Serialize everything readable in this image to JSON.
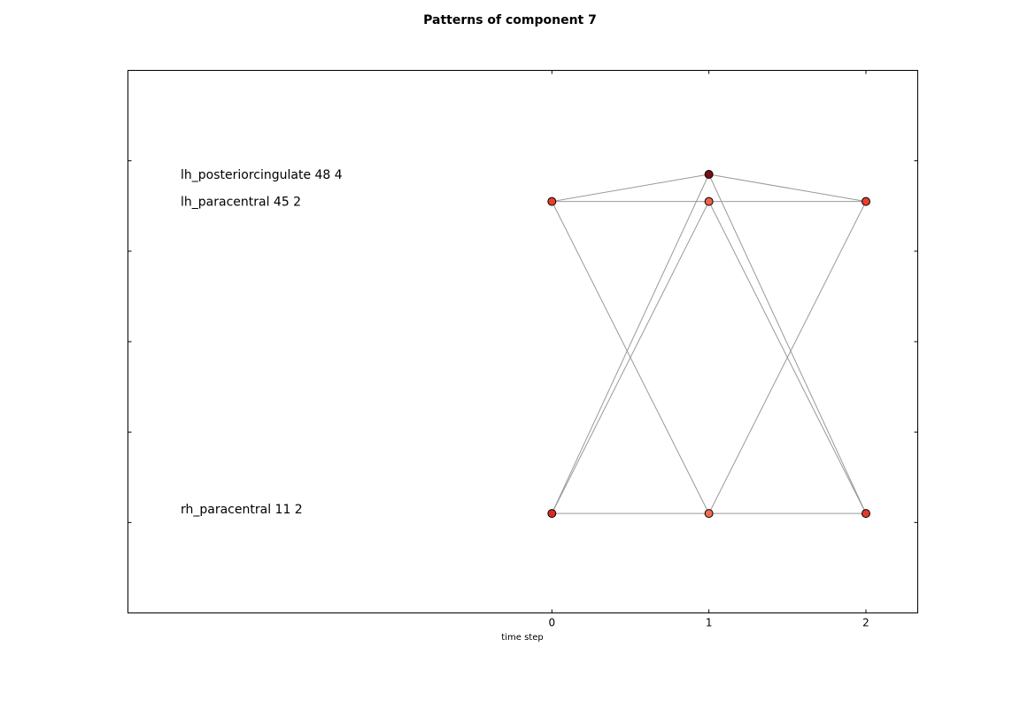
{
  "chart_data": {
    "type": "scatter",
    "title": "Patterns of component 7",
    "xlabel": "time step",
    "ylabel": "",
    "xlim": [
      -2.7,
      2.33
    ],
    "ylim": [
      -10,
      50
    ],
    "x_ticks": [
      0,
      1,
      2
    ],
    "y_ticks": [
      0,
      10,
      20,
      30,
      40
    ],
    "grid": false,
    "node_labels": [
      {
        "text": "lh_posteriorcingulate 48 4",
        "y": 38.5
      },
      {
        "text": "lh_paracentral 45 2",
        "y": 35.5
      },
      {
        "text": "rh_paracentral 11 2",
        "y": 1.5
      }
    ],
    "nodes": [
      {
        "x": 0,
        "y": 35.5,
        "color": "#e8402c"
      },
      {
        "x": 1,
        "y": 38.5,
        "color": "#7a0f14"
      },
      {
        "x": 1,
        "y": 35.5,
        "color": "#f0624a"
      },
      {
        "x": 2,
        "y": 35.5,
        "color": "#e8402c"
      },
      {
        "x": 0,
        "y": 1.0,
        "color": "#d92b22"
      },
      {
        "x": 1,
        "y": 1.0,
        "color": "#f26a50"
      },
      {
        "x": 2,
        "y": 1.0,
        "color": "#e23a2a"
      }
    ],
    "edges": [
      [
        [
          0,
          35.5
        ],
        [
          1,
          38.5
        ]
      ],
      [
        [
          1,
          38.5
        ],
        [
          2,
          35.5
        ]
      ],
      [
        [
          0,
          35.5
        ],
        [
          2,
          35.5
        ]
      ],
      [
        [
          0,
          35.5
        ],
        [
          1,
          1.0
        ]
      ],
      [
        [
          0,
          1.0
        ],
        [
          1,
          38.5
        ]
      ],
      [
        [
          0,
          1.0
        ],
        [
          1,
          35.5
        ]
      ],
      [
        [
          1,
          38.5
        ],
        [
          2,
          1.0
        ]
      ],
      [
        [
          1,
          35.5
        ],
        [
          2,
          1.0
        ]
      ],
      [
        [
          1,
          1.0
        ],
        [
          2,
          35.5
        ]
      ],
      [
        [
          0,
          1.0
        ],
        [
          2,
          1.0
        ]
      ]
    ]
  }
}
